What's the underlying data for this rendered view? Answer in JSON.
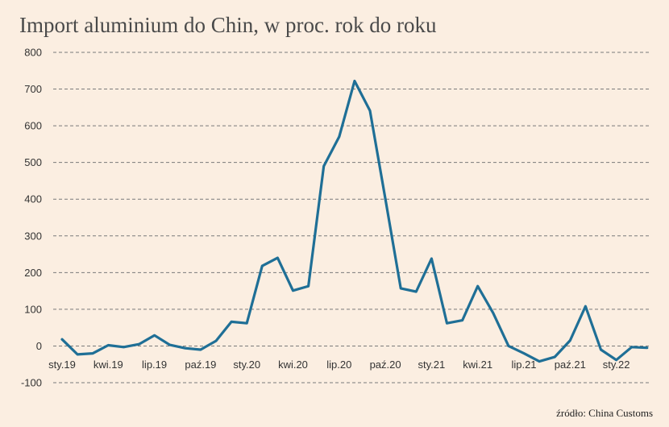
{
  "title": "Import aluminium do Chin, w proc. rok do roku",
  "source": "źródło: China Customs",
  "chart_data": {
    "type": "line",
    "title": "Import aluminium do Chin, w proc. rok do roku",
    "xlabel": "",
    "ylabel": "",
    "ylim": [
      -100,
      800
    ],
    "yticks": [
      -100,
      0,
      100,
      200,
      300,
      400,
      500,
      600,
      700,
      800
    ],
    "grid": true,
    "x_tick_labels": [
      {
        "index": 0,
        "label": "sty.19"
      },
      {
        "index": 3,
        "label": "kwi.19"
      },
      {
        "index": 6,
        "label": "lip.19"
      },
      {
        "index": 9,
        "label": "paź.19"
      },
      {
        "index": 12,
        "label": "sty.20"
      },
      {
        "index": 15,
        "label": "kwi.20"
      },
      {
        "index": 18,
        "label": "lip.20"
      },
      {
        "index": 21,
        "label": "paź.20"
      },
      {
        "index": 24,
        "label": "sty.21"
      },
      {
        "index": 27,
        "label": "kwi.21"
      },
      {
        "index": 30,
        "label": "lip.21"
      },
      {
        "index": 33,
        "label": "paź.21"
      },
      {
        "index": 36,
        "label": "sty.22"
      }
    ],
    "series": [
      {
        "color": "#1f6f96",
        "values": [
          18,
          -23,
          -20,
          2,
          -3,
          5,
          29,
          3,
          -6,
          -10,
          14,
          66,
          62,
          218,
          240,
          151,
          163,
          490,
          570,
          722,
          641,
          401,
          157,
          148,
          238,
          62,
          70,
          163,
          90,
          0,
          -20,
          -42,
          -30,
          15,
          108,
          -10,
          -38,
          -3,
          -5
        ]
      }
    ]
  }
}
